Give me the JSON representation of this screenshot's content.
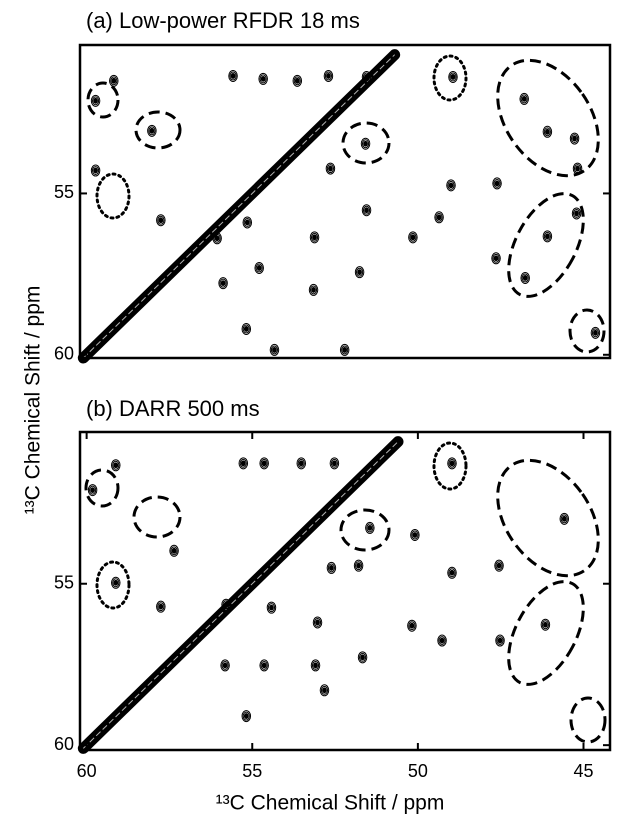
{
  "y_label": "¹³C Chemical Shift / ppm",
  "chart_data": [
    {
      "type": "contour",
      "title": "(a) Low-power RFDR 18 ms",
      "xlim": [
        60.2,
        44.2
      ],
      "ylim": [
        50.4,
        60.1
      ],
      "yticks": [
        55,
        60
      ],
      "diagonal": [
        60.1,
        50.7
      ],
      "x": [
        59.73,
        59.18,
        58.03,
        59.73,
        57.76,
        55.58,
        54.67,
        53.64,
        52.7,
        51.55,
        51.58,
        48.94,
        46.79,
        46.09,
        45.27,
        45.18,
        45.21,
        46.09,
        47.64,
        46.76,
        44.64,
        50.15,
        49.36,
        49.0,
        47.61,
        51.76,
        53.15,
        55.18,
        54.33,
        52.21,
        55.88,
        54.79,
        53.12,
        51.55,
        56.06,
        55.15,
        52.64
      ],
      "values": [
        52.13,
        51.51,
        53.06,
        54.29,
        55.83,
        51.36,
        51.45,
        51.51,
        51.36,
        51.39,
        53.46,
        51.39,
        52.07,
        53.09,
        53.3,
        54.23,
        55.62,
        56.33,
        57.01,
        57.62,
        59.32,
        56.36,
        55.74,
        54.75,
        54.69,
        57.44,
        57.99,
        59.2,
        59.85,
        59.85,
        57.78,
        57.31,
        56.36,
        55.52,
        56.39,
        55.9,
        54.23
      ]
    },
    {
      "type": "contour",
      "title": "(b) DARR 500 ms",
      "xlabel": "¹³C Chemical Shift / ppm",
      "xlim": [
        60.2,
        44.2
      ],
      "ylim": [
        50.3,
        60.15
      ],
      "xticks": [
        60,
        55,
        50,
        45
      ],
      "yticks": [
        55,
        60
      ],
      "diagonal": [
        60.1,
        50.6
      ],
      "x": [
        59.82,
        59.12,
        57.76,
        59.12,
        57.36,
        55.27,
        54.64,
        53.52,
        52.52,
        51.45,
        51.79,
        48.97,
        48.97,
        47.55,
        45.58,
        46.15,
        47.52,
        55.82,
        54.64,
        53.09,
        51.67,
        49.27,
        50.18,
        53.03,
        55.18,
        52.82,
        54.42,
        50.09,
        52.61,
        55.79
      ],
      "values": [
        52.1,
        54.97,
        55.71,
        51.33,
        53.98,
        51.27,
        51.27,
        51.27,
        51.27,
        53.27,
        54.44,
        51.27,
        54.66,
        54.44,
        52.99,
        56.27,
        56.76,
        57.53,
        57.53,
        57.53,
        57.28,
        56.76,
        56.3,
        56.2,
        59.1,
        58.3,
        55.74,
        53.49,
        54.51,
        55.65
      ]
    }
  ]
}
